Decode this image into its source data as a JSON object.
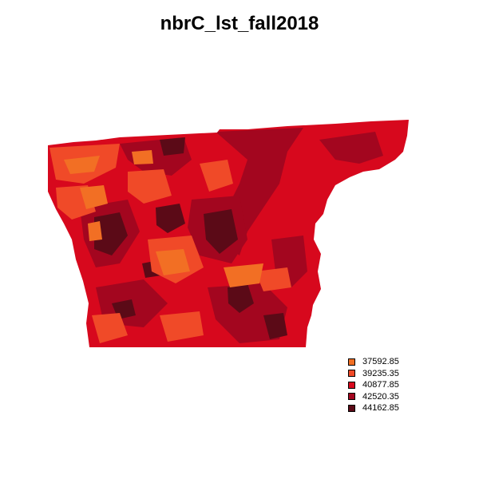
{
  "title": "nbrC_lst_fall2018",
  "legend": {
    "items": [
      {
        "label": "37592.85",
        "color": "#f26f24"
      },
      {
        "label": "39235.35",
        "color": "#f04a28"
      },
      {
        "label": "40877.85",
        "color": "#d7081d"
      },
      {
        "label": "42520.35",
        "color": "#a3061f"
      },
      {
        "label": "44162.85",
        "color": "#5b0a17"
      }
    ]
  }
}
